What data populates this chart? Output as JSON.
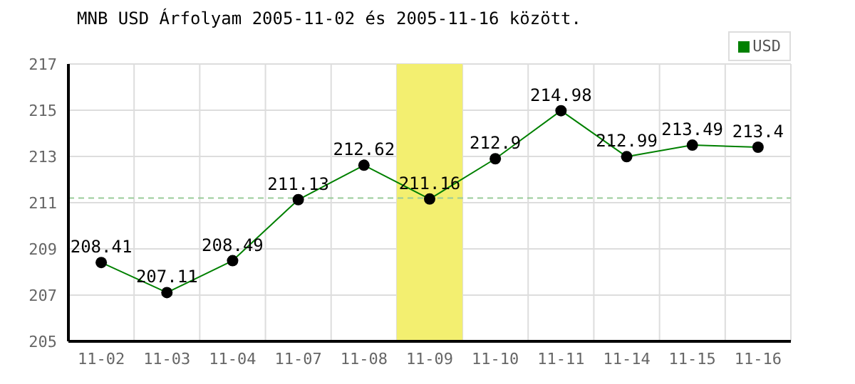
{
  "chart_data": {
    "type": "line",
    "title": "MNB USD Árfolyam 2005-11-02 és 2005-11-16 között.",
    "categories": [
      "11-02",
      "11-03",
      "11-04",
      "11-07",
      "11-08",
      "11-09",
      "11-10",
      "11-11",
      "11-14",
      "11-15",
      "11-16"
    ],
    "series": [
      {
        "name": "USD",
        "color": "#008000",
        "values": [
          208.41,
          207.11,
          208.49,
          211.13,
          212.62,
          211.16,
          212.9,
          214.98,
          212.99,
          213.49,
          213.4
        ]
      }
    ],
    "ylim": [
      205,
      217
    ],
    "yticks": [
      205,
      207,
      209,
      211,
      213,
      215,
      217
    ],
    "ref_lines": [
      {
        "axis": "y",
        "value": 211.2,
        "color": "#99cc99",
        "line_style": "dashed"
      }
    ],
    "bands": [
      {
        "axis": "x",
        "from": "11-09",
        "to": "11-09",
        "color": "#f3ef70"
      }
    ],
    "data_labels": true,
    "grid": true,
    "legend": "top right",
    "marker": "circle",
    "line_style": "solid"
  }
}
